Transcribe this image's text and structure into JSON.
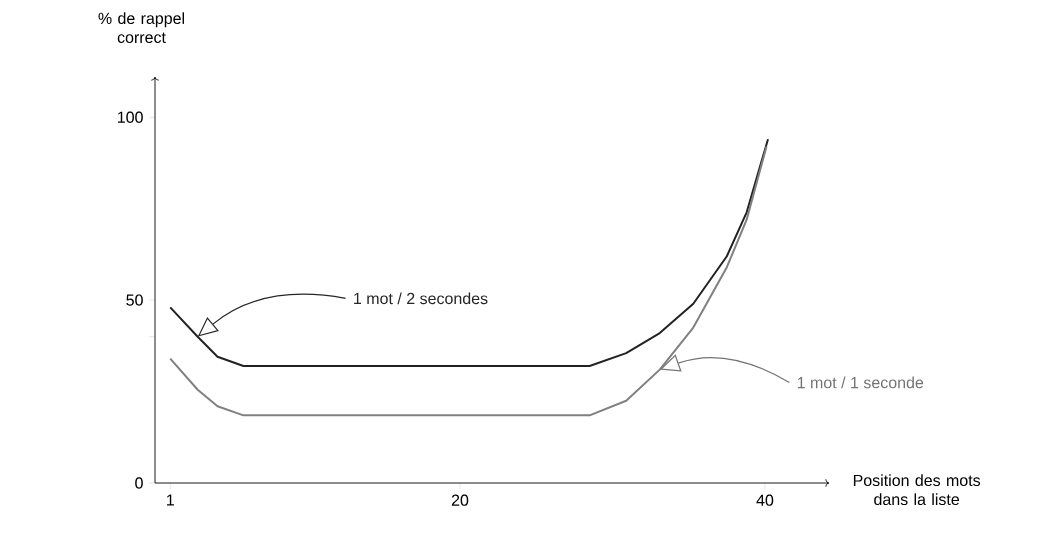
{
  "chart_data": {
    "type": "line",
    "ylabel": "% de rappel correct",
    "xlabel": "Position des mots dans la liste",
    "xlim": [
      0,
      44.2
    ],
    "ylim": [
      0,
      111
    ],
    "xticks": [
      1,
      20,
      40
    ],
    "yticks": [
      0,
      {
        "value": 40,
        "label": null
      },
      50,
      100
    ],
    "series": [
      {
        "color": "#222222",
        "x": [
          1,
          2.8,
          4.1,
          5.8,
          28.5,
          30.9,
          33.1,
          35.3,
          37.5,
          38.8,
          40.2
        ],
        "values": [
          48,
          40,
          34.5,
          32,
          32,
          35.5,
          41,
          49,
          62,
          74,
          94
        ]
      },
      {
        "color": "#808080",
        "x": [
          1,
          2.8,
          4.1,
          5.8,
          28.5,
          30.9,
          33.1,
          35.3,
          37.5,
          38.8,
          40.1
        ],
        "values": [
          34,
          25.5,
          21,
          18.5,
          18.5,
          22.5,
          31,
          42.5,
          59,
          72,
          92
        ]
      }
    ],
    "annotations": [
      "1 mot / 2 secondes",
      "1 mot / 1 seconde"
    ]
  }
}
